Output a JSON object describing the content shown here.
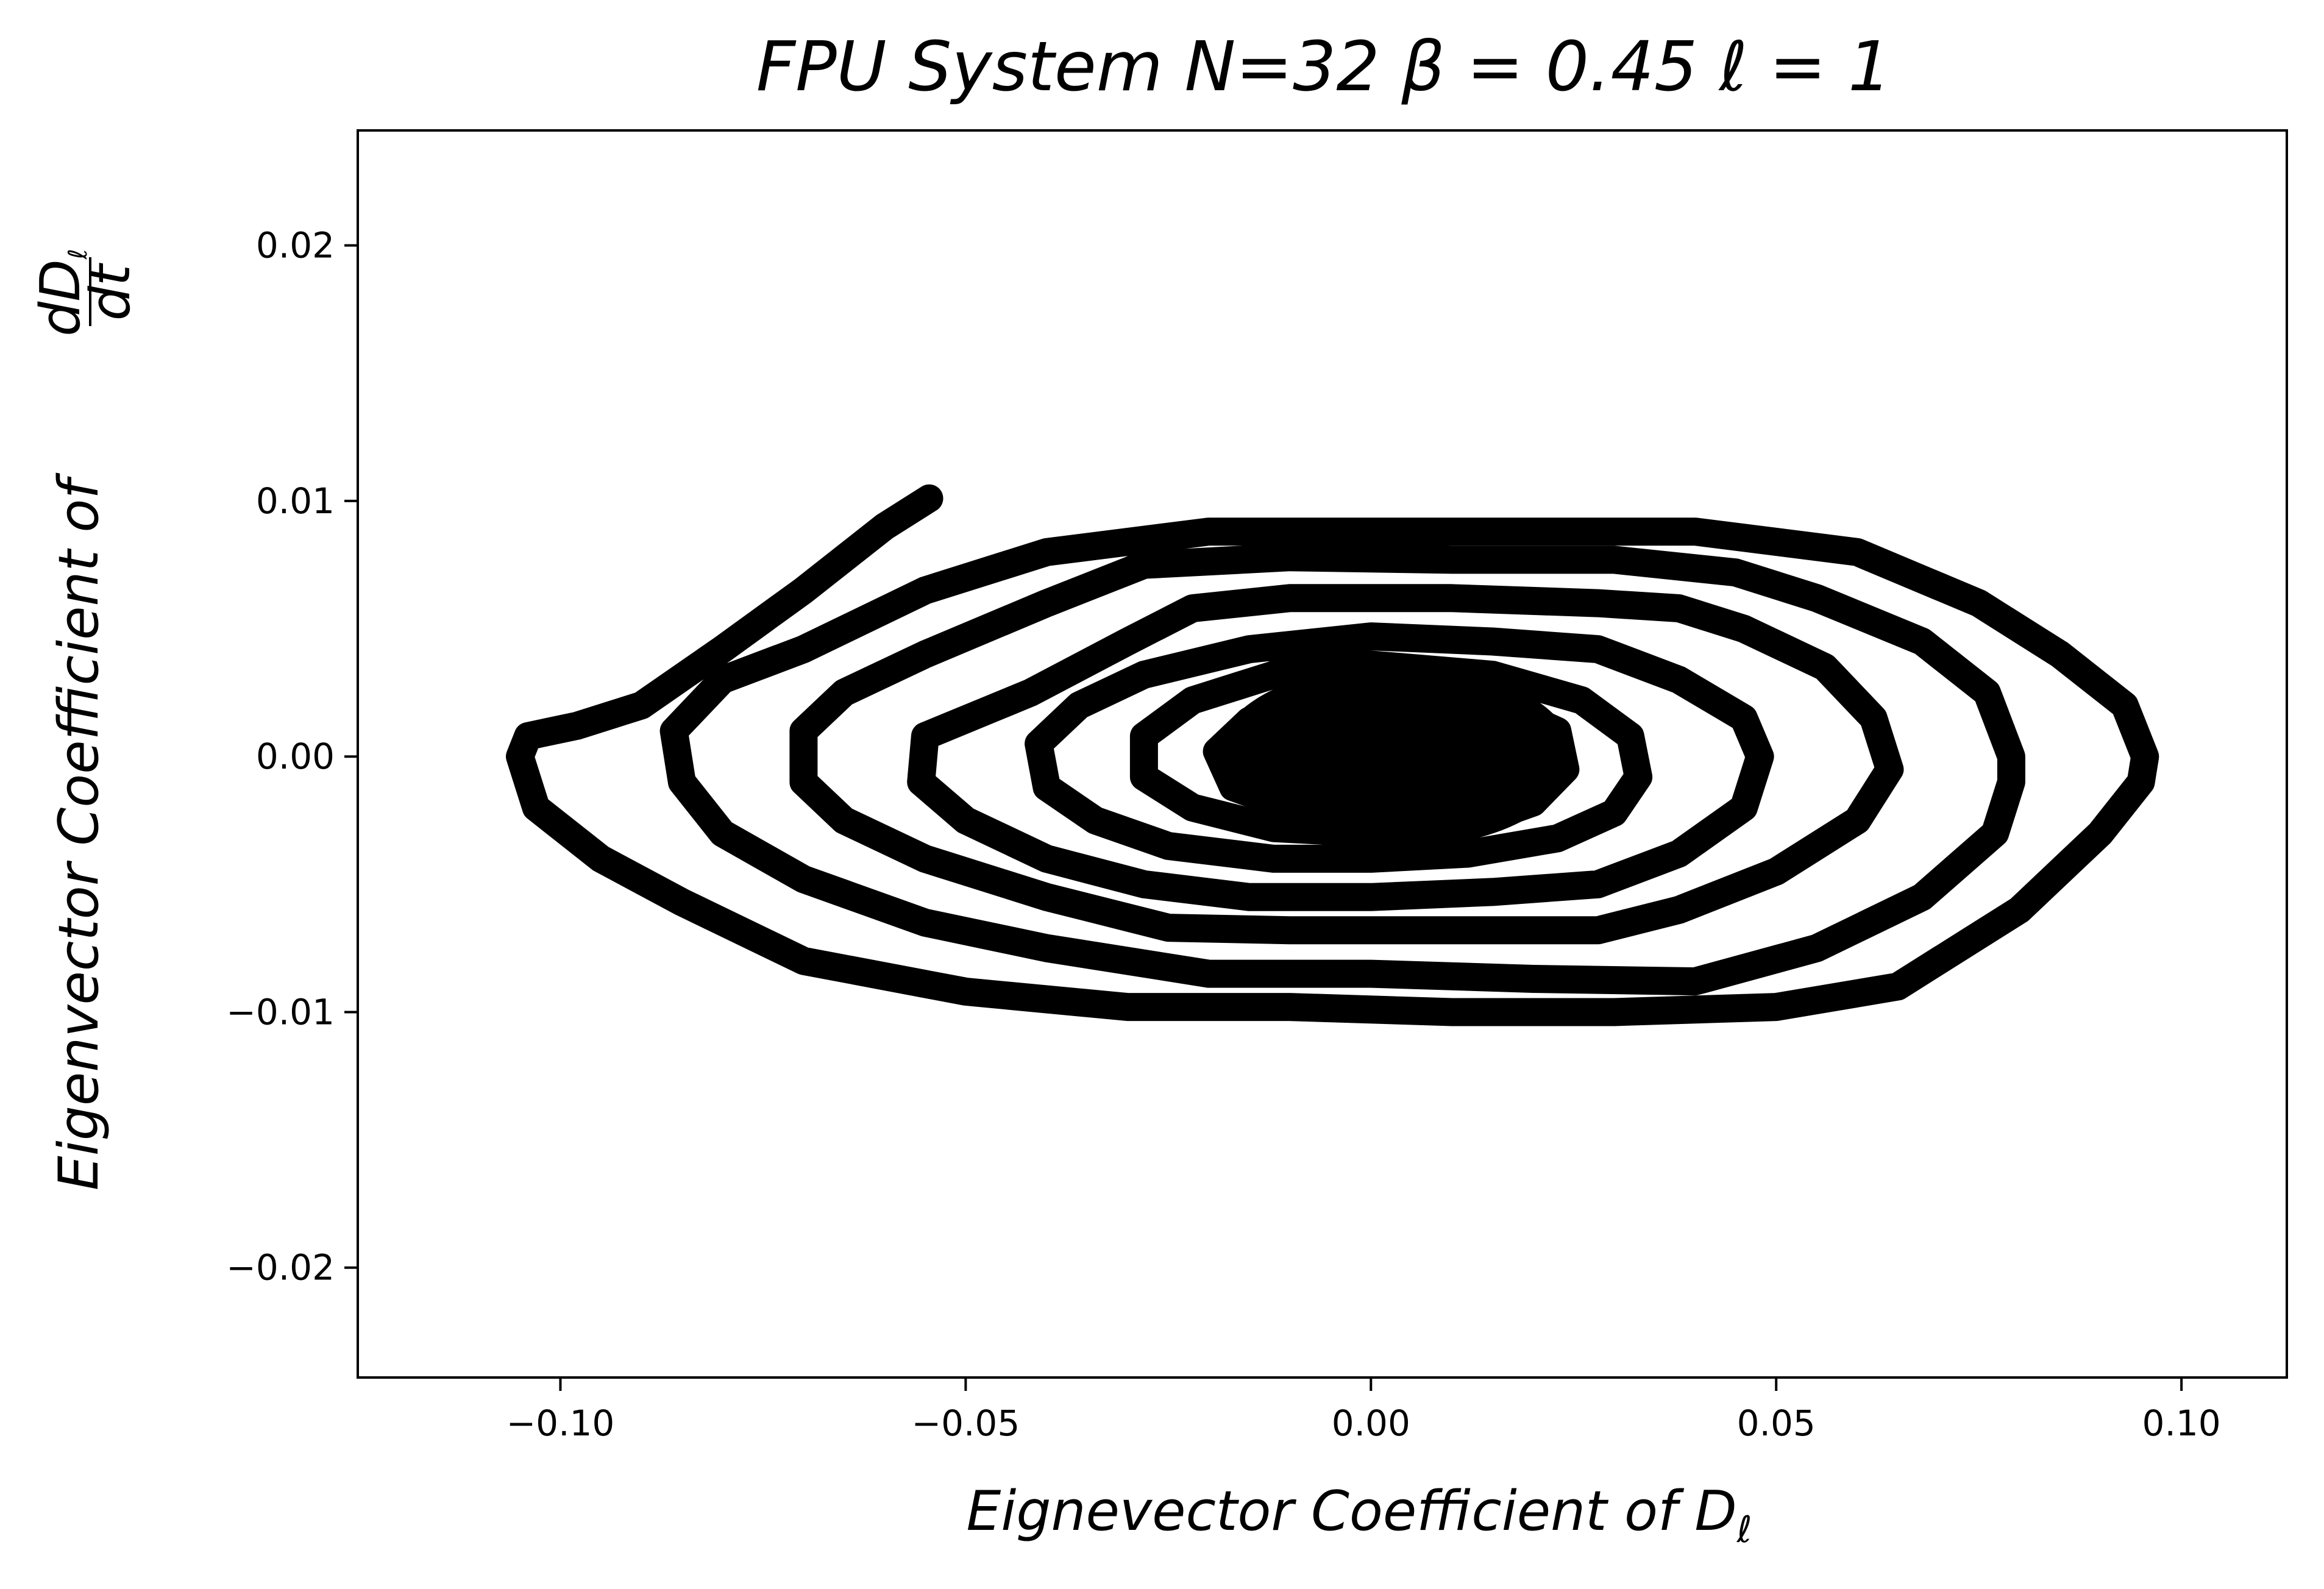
{
  "chart_data": {
    "type": "line",
    "title": "FPU System N=32 β = 0.45 ℓ = 1",
    "xlabel": "Eignevector Coefficient of D",
    "xlabel_sub": "ℓ",
    "ylabel": "Eigenvector Coefficient of",
    "ylabel_frac_num": "dD",
    "ylabel_frac_num_sub": "ℓ",
    "ylabel_frac_den": "dt",
    "xlim": [
      -0.125,
      0.113
    ],
    "ylim": [
      -0.0243,
      0.0245
    ],
    "xticks": [
      -0.1,
      -0.05,
      0.0,
      0.05,
      0.1
    ],
    "xtick_labels": [
      "−0.10",
      "−0.05",
      "0.00",
      "0.05",
      "0.10"
    ],
    "yticks": [
      -0.02,
      -0.01,
      0.0,
      0.01,
      0.02
    ],
    "ytick_labels": [
      "−0.02",
      "−0.01",
      "0.00",
      "0.01",
      "0.02"
    ],
    "grid": false,
    "series_color": "#000000",
    "series": [
      {
        "description": "phase-space spiral decaying toward origin",
        "points": [
          [
            -0.0545,
            0.0101
          ],
          [
            -0.06,
            0.009
          ],
          [
            -0.07,
            0.0065
          ],
          [
            -0.08,
            0.0042
          ],
          [
            -0.09,
            0.002
          ],
          [
            -0.098,
            0.0012
          ],
          [
            -0.104,
            0.0008
          ],
          [
            -0.105,
            0.0
          ],
          [
            -0.103,
            -0.002
          ],
          [
            -0.095,
            -0.004
          ],
          [
            -0.085,
            -0.0057
          ],
          [
            -0.07,
            -0.008
          ],
          [
            -0.05,
            -0.0092
          ],
          [
            -0.03,
            -0.0098
          ],
          [
            -0.01,
            -0.0098
          ],
          [
            0.01,
            -0.01
          ],
          [
            0.03,
            -0.01
          ],
          [
            0.05,
            -0.0098
          ],
          [
            0.065,
            -0.009
          ],
          [
            0.08,
            -0.006
          ],
          [
            0.09,
            -0.003
          ],
          [
            0.095,
            -0.001
          ],
          [
            0.0955,
            0.0
          ],
          [
            0.093,
            0.002
          ],
          [
            0.085,
            0.004
          ],
          [
            0.075,
            0.006
          ],
          [
            0.06,
            0.008
          ],
          [
            0.04,
            0.0088
          ],
          [
            0.02,
            0.0088
          ],
          [
            0.0,
            0.0088
          ],
          [
            -0.02,
            0.0088
          ],
          [
            -0.04,
            0.008
          ],
          [
            -0.055,
            0.0065
          ],
          [
            -0.07,
            0.0042
          ],
          [
            -0.08,
            0.003
          ],
          [
            -0.086,
            0.001
          ],
          [
            -0.085,
            -0.001
          ],
          [
            -0.08,
            -0.003
          ],
          [
            -0.07,
            -0.0048
          ],
          [
            -0.055,
            -0.0065
          ],
          [
            -0.04,
            -0.0075
          ],
          [
            -0.02,
            -0.0085
          ],
          [
            0.0,
            -0.0085
          ],
          [
            0.02,
            -0.0087
          ],
          [
            0.04,
            -0.0088
          ],
          [
            0.055,
            -0.0075
          ],
          [
            0.068,
            -0.0055
          ],
          [
            0.077,
            -0.003
          ],
          [
            0.079,
            -0.001
          ],
          [
            0.079,
            0.0
          ],
          [
            0.076,
            0.0025
          ],
          [
            0.068,
            0.0045
          ],
          [
            0.055,
            0.0062
          ],
          [
            0.045,
            0.0072
          ],
          [
            0.03,
            0.0077
          ],
          [
            0.01,
            0.0077
          ],
          [
            -0.01,
            0.0078
          ],
          [
            -0.028,
            0.0075
          ],
          [
            -0.04,
            0.006
          ],
          [
            -0.055,
            0.004
          ],
          [
            -0.065,
            0.0025
          ],
          [
            -0.07,
            0.001
          ],
          [
            -0.07,
            -0.001
          ],
          [
            -0.065,
            -0.0025
          ],
          [
            -0.055,
            -0.004
          ],
          [
            -0.04,
            -0.0055
          ],
          [
            -0.025,
            -0.0067
          ],
          [
            -0.01,
            -0.0068
          ],
          [
            0.01,
            -0.0068
          ],
          [
            0.028,
            -0.0068
          ],
          [
            0.038,
            -0.006
          ],
          [
            0.05,
            -0.0045
          ],
          [
            0.06,
            -0.0025
          ],
          [
            0.064,
            -0.0005
          ],
          [
            0.062,
            0.0015
          ],
          [
            0.056,
            0.0035
          ],
          [
            0.046,
            0.005
          ],
          [
            0.038,
            0.0058
          ],
          [
            0.028,
            0.006
          ],
          [
            0.01,
            0.0062
          ],
          [
            -0.01,
            0.0062
          ],
          [
            -0.022,
            0.0058
          ],
          [
            -0.03,
            0.0045
          ],
          [
            -0.042,
            0.0025
          ],
          [
            -0.055,
            0.0008
          ],
          [
            -0.0555,
            -0.001
          ],
          [
            -0.05,
            -0.0025
          ],
          [
            -0.04,
            -0.004
          ],
          [
            -0.028,
            -0.005
          ],
          [
            -0.015,
            -0.0055
          ],
          [
            0.0,
            -0.0055
          ],
          [
            0.015,
            -0.0053
          ],
          [
            0.028,
            -0.005
          ],
          [
            0.038,
            -0.0038
          ],
          [
            0.046,
            -0.002
          ],
          [
            0.048,
            0.0
          ],
          [
            0.046,
            0.0015
          ],
          [
            0.038,
            0.003
          ],
          [
            0.028,
            0.0042
          ],
          [
            0.015,
            0.0045
          ],
          [
            0.0,
            0.0047
          ],
          [
            -0.015,
            0.0042
          ],
          [
            -0.028,
            0.0032
          ],
          [
            -0.036,
            0.002
          ],
          [
            -0.041,
            0.0005
          ],
          [
            -0.04,
            -0.0012
          ],
          [
            -0.034,
            -0.0025
          ],
          [
            -0.025,
            -0.0035
          ],
          [
            -0.012,
            -0.004
          ],
          [
            0.0,
            -0.004
          ],
          [
            0.012,
            -0.0038
          ],
          [
            0.023,
            -0.0032
          ],
          [
            0.03,
            -0.0022
          ],
          [
            0.033,
            -0.0008
          ],
          [
            0.032,
            0.0008
          ],
          [
            0.026,
            0.0022
          ],
          [
            0.015,
            0.0032
          ],
          [
            0.0,
            0.0036
          ],
          [
            -0.012,
            0.0032
          ],
          [
            -0.022,
            0.0022
          ],
          [
            -0.028,
            0.0008
          ],
          [
            -0.028,
            -0.0008
          ],
          [
            -0.022,
            -0.002
          ],
          [
            -0.012,
            -0.0028
          ],
          [
            0.0,
            -0.003
          ],
          [
            0.012,
            -0.0027
          ],
          [
            0.02,
            -0.0018
          ],
          [
            0.024,
            -0.0005
          ],
          [
            0.023,
            0.001
          ],
          [
            0.016,
            0.002
          ],
          [
            0.005,
            0.0025
          ],
          [
            -0.006,
            0.0022
          ],
          [
            -0.015,
            0.0014
          ],
          [
            -0.019,
            0.0002
          ],
          [
            -0.017,
            -0.0012
          ],
          [
            -0.01,
            -0.002
          ],
          [
            0.0,
            -0.0022
          ],
          [
            0.01,
            -0.0018
          ],
          [
            0.016,
            -0.0008
          ],
          [
            0.017,
            0.0004
          ],
          [
            0.012,
            0.0014
          ],
          [
            0.003,
            0.0018
          ],
          [
            -0.006,
            0.0015
          ],
          [
            -0.011,
            0.0006
          ],
          [
            -0.011,
            -0.0006
          ],
          [
            -0.006,
            -0.0013
          ],
          [
            0.002,
            -0.0014
          ],
          [
            0.008,
            -0.0008
          ],
          [
            0.01,
            0.0002
          ],
          [
            0.007,
            0.001
          ],
          [
            0.001,
            0.0011
          ],
          [
            -0.004,
            0.0006
          ],
          [
            -0.005,
            -0.0002
          ],
          [
            -0.002,
            -0.0007
          ],
          [
            0.003,
            -0.0006
          ],
          [
            0.005,
            0.0
          ],
          [
            0.003,
            0.0004
          ],
          [
            0.0,
            0.0003
          ]
        ]
      }
    ]
  }
}
